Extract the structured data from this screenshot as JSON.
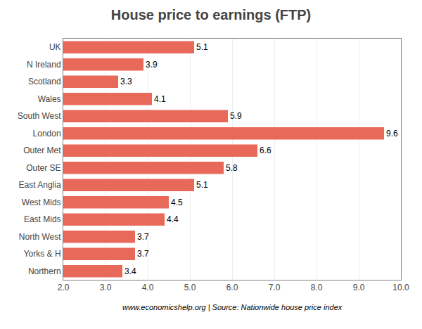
{
  "chart_data": {
    "type": "bar",
    "orientation": "horizontal",
    "title": "House price to earnings (FTP)",
    "categories": [
      "UK",
      "N Ireland",
      "Scotland",
      "Wales",
      "South West",
      "London",
      "Outer Met",
      "Outer SE",
      "East Anglia",
      "West Mids",
      "East Mids",
      "North West",
      "Yorks & H",
      "Northern"
    ],
    "values": [
      5.1,
      3.9,
      3.3,
      4.1,
      5.9,
      9.6,
      6.6,
      5.8,
      5.1,
      4.5,
      4.4,
      3.7,
      3.7,
      3.4
    ],
    "color": "#E8695A",
    "xlim": [
      2.0,
      10.0
    ],
    "xticks": [
      {
        "value": 2,
        "label": "2.0"
      },
      {
        "value": 3,
        "label": "3.0"
      },
      {
        "value": 4,
        "label": "4.0"
      },
      {
        "value": 5,
        "label": "5.0"
      },
      {
        "value": 6,
        "label": "6.0"
      },
      {
        "value": 7,
        "label": "7.0"
      },
      {
        "value": 8,
        "label": "8.0"
      },
      {
        "value": 9,
        "label": "9.0"
      },
      {
        "value": 10,
        "label": "10.0"
      }
    ],
    "grid": true,
    "data_labels": true,
    "annotations": [
      "www.economicshelp.org | Source: Nationwide house price index"
    ]
  }
}
